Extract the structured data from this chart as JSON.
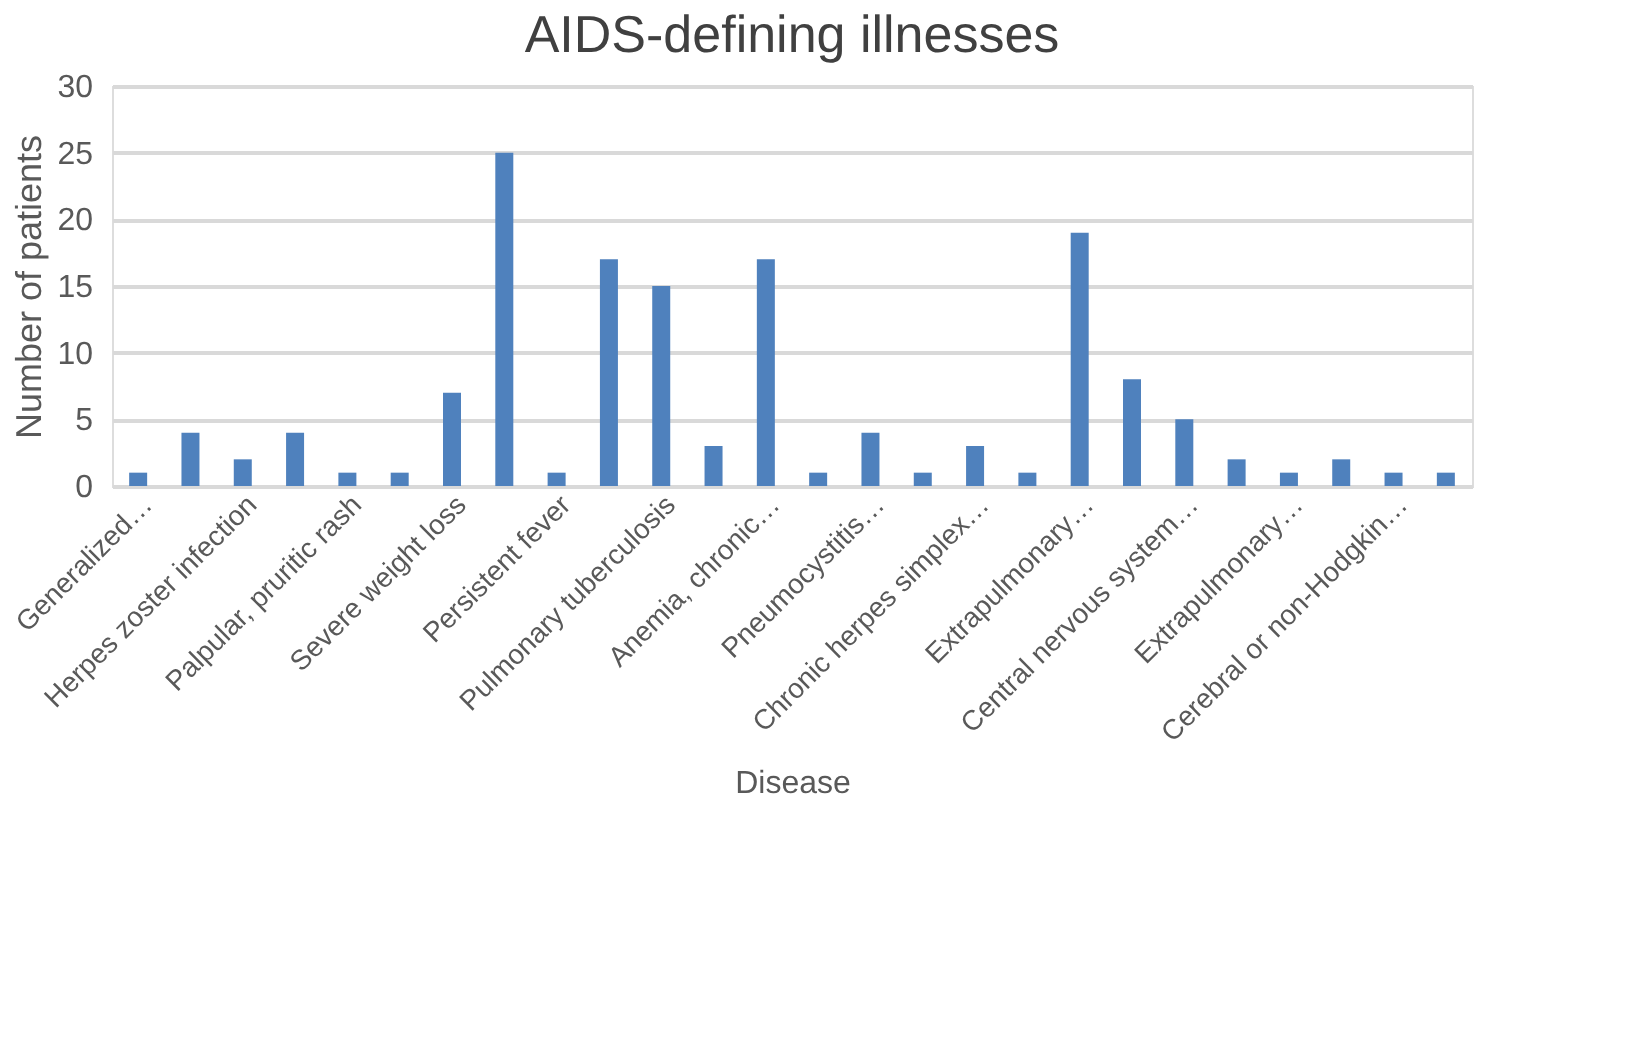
{
  "chart_data": {
    "type": "bar",
    "title": "AIDS-defining illnesses",
    "xlabel": "Disease",
    "ylabel": "Number of patients",
    "categories": [
      "Generalized…",
      null,
      "Herpes zoster infection",
      null,
      "Palpular, pruritic rash",
      null,
      "Severe weight loss",
      null,
      "Persistent fever",
      null,
      "Pulmonary tuberculosis",
      null,
      "Anemia, chronic…",
      null,
      "Pneumocystitis…",
      null,
      "Chronic herpes simplex…",
      null,
      "Extrapulmonary…",
      null,
      "Central nervous system…",
      null,
      "Extrapulmonary…",
      null,
      "Cerebral or non-Hodgkin…",
      null
    ],
    "values": [
      1,
      4,
      2,
      4,
      1,
      1,
      7,
      25,
      1,
      17,
      15,
      3,
      17,
      1,
      4,
      1,
      3,
      1,
      19,
      8,
      5,
      2,
      1,
      2,
      1,
      1
    ],
    "color": "#4f81bd",
    "ylim": [
      0,
      30
    ],
    "yticks": [
      0,
      5,
      10,
      15,
      20,
      25,
      30
    ],
    "grid": "y"
  }
}
